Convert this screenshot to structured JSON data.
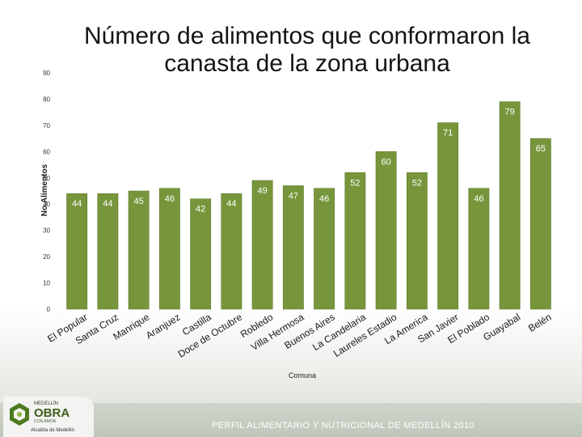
{
  "title": "Número de alimentos que conformaron la canasta de la zona urbana",
  "footer": {
    "text": "PERFIL ALIMENTARIO Y NUTRICIONAL DE MEDELLÍN 2010",
    "logo_line1": "MEDELLÍN",
    "logo_line2": "OBRA",
    "logo_line3": "CON AMOR",
    "logo_mayor": "Alcaldía de Medellín"
  },
  "colors": {
    "bar": "#77963b",
    "bar_stroke": "#5f7a2c",
    "value_label": "#ffffff",
    "axis_text": "#333333"
  },
  "chart_data": {
    "type": "bar",
    "title": "Número de alimentos que conformaron la canasta de la zona urbana",
    "xlabel": "Comuna",
    "ylabel": "No.Alimentos",
    "ylim": [
      0,
      90
    ],
    "yticks": [
      0,
      10,
      20,
      30,
      40,
      50,
      60,
      70,
      80,
      90
    ],
    "grid": false,
    "legend": "none",
    "categories": [
      "El Popular",
      "Santa Cruz",
      "Manrique",
      "Aranjuez",
      "Castilla",
      "Doce de Octubre",
      "Robledo",
      "Villa Hermosa",
      "Buenos Aires",
      "La Candelaria",
      "Laureles Estadio",
      "La America",
      "San Javier",
      "El Poblado",
      "Guayabal",
      "Belén"
    ],
    "values": [
      44,
      44,
      45,
      46,
      42,
      44,
      49,
      47,
      46,
      52,
      60,
      52,
      71,
      46,
      79,
      65
    ]
  }
}
